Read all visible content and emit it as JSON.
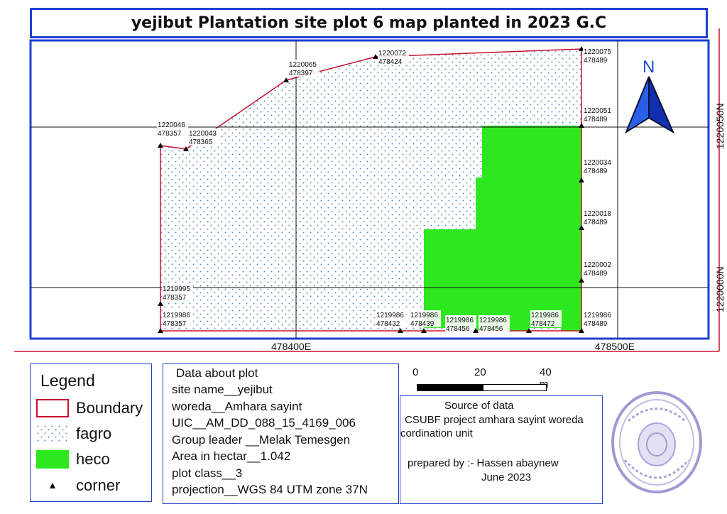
{
  "title": "yejibut Plantation site plot 6 map planted in 2023 G.C",
  "north_label": "N",
  "grid": {
    "x_labels": [
      "478400E",
      "478500E"
    ],
    "y_labels": [
      "1220050N",
      "1220000N"
    ]
  },
  "corner_labels": [
    {
      "north": "1220075",
      "east": "478489"
    },
    {
      "north": "1220072",
      "east": "478424"
    },
    {
      "north": "1220065",
      "east": "478397"
    },
    {
      "north": "1220046",
      "east": "478357"
    },
    {
      "north": "1220043",
      "east": "478365"
    },
    {
      "north": "1220051",
      "east": "478489"
    },
    {
      "north": "1220034",
      "east": "478489"
    },
    {
      "north": "1220018",
      "east": "478489"
    },
    {
      "north": "1220002",
      "east": "478489"
    },
    {
      "north": "1219995",
      "east": "478357"
    },
    {
      "north": "1219986",
      "east": "478357"
    },
    {
      "north": "1219986",
      "east": "478432"
    },
    {
      "north": "1219986",
      "east": "478439"
    },
    {
      "north": "1219986",
      "east": "478456"
    },
    {
      "north": "1219986",
      "east": "478456"
    },
    {
      "north": "1219986",
      "east": "478472"
    },
    {
      "north": "1219986",
      "east": "478489"
    }
  ],
  "legend": {
    "title": "Legend",
    "items": [
      {
        "label": "Boundary",
        "color": "#c8102e"
      },
      {
        "label": "fagro",
        "color": "#5a8fc0"
      },
      {
        "label": "heco",
        "color": "#2ee81f"
      },
      {
        "label": "corner",
        "color": "#000000"
      }
    ]
  },
  "plot_data": {
    "heading": "Data about plot",
    "lines": [
      "site name__yejibut",
      "woreda__Amhara sayint",
      "UIC__AM_DD_088_15_4169_006",
      "Group leader __Melak Temesgen",
      "Area in hectar__1.042",
      "plot class__3",
      "projection__WGS 84 UTM zone 37N"
    ]
  },
  "scale": {
    "labels": [
      "0",
      "20",
      "40 m"
    ]
  },
  "source": {
    "heading": "Source of data",
    "lines": [
      "CSUBF project amhara sayint woreda",
      "cordination unit"
    ],
    "prepared": "prepared by :- Hassen abaynew",
    "date": "June 2023"
  },
  "colors": {
    "frame": "#1f3fd0",
    "boundary": "#c8102e",
    "heco": "#2ee81f",
    "fagro_dot": "#5a8fc0",
    "arrow": "#1a4fd8"
  }
}
